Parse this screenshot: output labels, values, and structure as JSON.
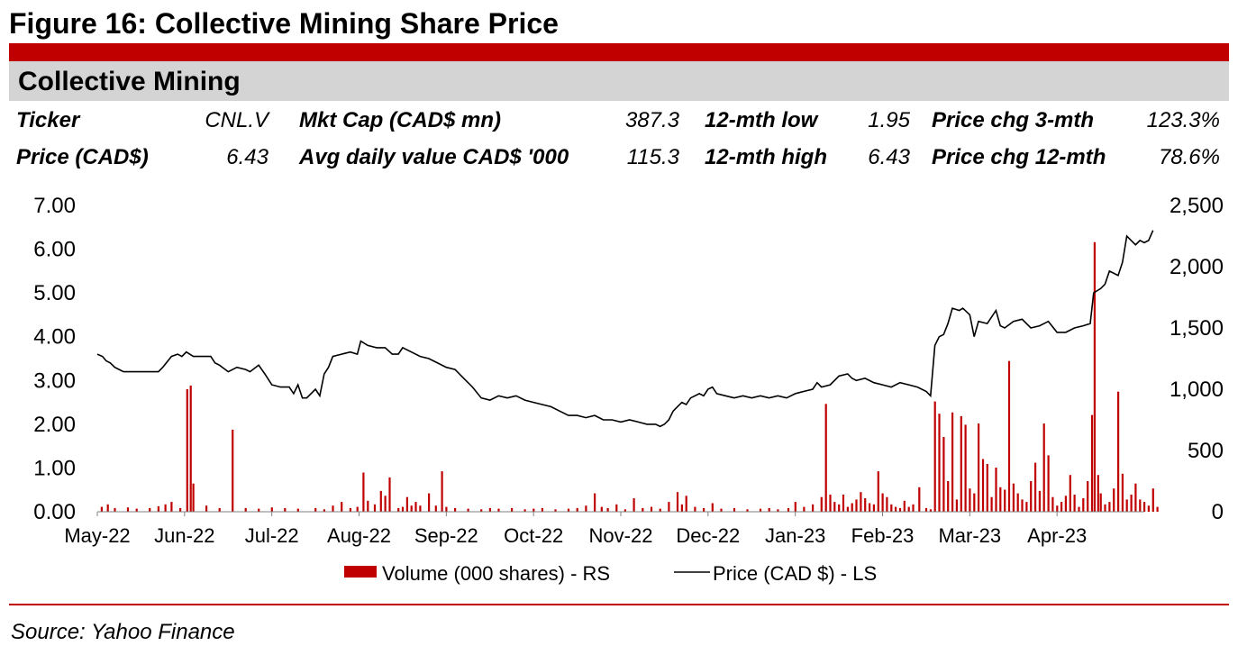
{
  "figure_title": "Figure 16: Collective Mining Share Price",
  "panel_title": "Collective Mining",
  "stats": {
    "row1": [
      {
        "label": "Ticker",
        "value": "CNL.V"
      },
      {
        "label": "Mkt Cap (CAD$ mn)",
        "value": "387.3"
      },
      {
        "label": "12-mth low",
        "value": "1.95"
      },
      {
        "label": "Price chg 3-mth",
        "value": "123.3%"
      }
    ],
    "row2": [
      {
        "label": "Price (CAD$)",
        "value": "6.43"
      },
      {
        "label": "Avg daily value CAD$ '000",
        "value": "115.3"
      },
      {
        "label": "12-mth high",
        "value": "6.43"
      },
      {
        "label": "Price chg 12-mth",
        "value": "78.6%"
      }
    ]
  },
  "source": "Source: Yahoo Finance",
  "colors": {
    "accent": "#c00000",
    "band": "#d4d4d4",
    "price_line": "#000000",
    "volume_bar": "#c00000"
  },
  "chart_data": {
    "type": "line+bar",
    "title": "",
    "x_tick_labels": [
      "May-22",
      "Jun-22",
      "Jul-22",
      "Aug-22",
      "Sep-22",
      "Oct-22",
      "Nov-22",
      "Dec-22",
      "Jan-23",
      "Feb-23",
      "Mar-23",
      "Apr-23"
    ],
    "left_axis": {
      "label": "Price (CAD $)",
      "range": [
        0,
        7
      ],
      "ticks": [
        "0.00",
        "1.00",
        "2.00",
        "3.00",
        "4.00",
        "5.00",
        "6.00",
        "7.00"
      ]
    },
    "right_axis": {
      "label": "Volume (000 shares)",
      "range": [
        0,
        2500
      ],
      "ticks": [
        "0",
        "500",
        "1,000",
        "1,500",
        "2,000",
        "2,500"
      ]
    },
    "legend": [
      {
        "name": "Volume (000 shares) - RS",
        "kind": "bar"
      },
      {
        "name": "Price (CAD $) - LS",
        "kind": "line"
      }
    ],
    "legend_position": "bottom-center",
    "price_series": {
      "name": "Price (CAD $) - LS",
      "points": [
        [
          0.0,
          3.6
        ],
        [
          0.06,
          3.55
        ],
        [
          0.1,
          3.45
        ],
        [
          0.15,
          3.4
        ],
        [
          0.2,
          3.3
        ],
        [
          0.25,
          3.25
        ],
        [
          0.3,
          3.2
        ],
        [
          0.5,
          3.2
        ],
        [
          0.7,
          3.2
        ],
        [
          0.75,
          3.3
        ],
        [
          0.85,
          3.55
        ],
        [
          0.92,
          3.6
        ],
        [
          0.97,
          3.55
        ],
        [
          1.02,
          3.65
        ],
        [
          1.1,
          3.55
        ],
        [
          1.3,
          3.55
        ],
        [
          1.35,
          3.4
        ],
        [
          1.4,
          3.35
        ],
        [
          1.5,
          3.2
        ],
        [
          1.6,
          3.3
        ],
        [
          1.7,
          3.25
        ],
        [
          1.75,
          3.2
        ],
        [
          1.85,
          3.35
        ],
        [
          1.92,
          3.15
        ],
        [
          2.0,
          2.9
        ],
        [
          2.1,
          2.85
        ],
        [
          2.2,
          2.85
        ],
        [
          2.25,
          2.7
        ],
        [
          2.3,
          2.9
        ],
        [
          2.35,
          2.6
        ],
        [
          2.4,
          2.6
        ],
        [
          2.5,
          2.8
        ],
        [
          2.55,
          2.65
        ],
        [
          2.6,
          3.15
        ],
        [
          2.65,
          3.3
        ],
        [
          2.7,
          3.55
        ],
        [
          2.8,
          3.6
        ],
        [
          2.9,
          3.65
        ],
        [
          2.98,
          3.6
        ],
        [
          3.02,
          3.9
        ],
        [
          3.1,
          3.8
        ],
        [
          3.2,
          3.75
        ],
        [
          3.3,
          3.75
        ],
        [
          3.38,
          3.6
        ],
        [
          3.45,
          3.6
        ],
        [
          3.5,
          3.75
        ],
        [
          3.6,
          3.65
        ],
        [
          3.7,
          3.55
        ],
        [
          3.8,
          3.5
        ],
        [
          3.9,
          3.4
        ],
        [
          4.0,
          3.3
        ],
        [
          4.1,
          3.25
        ],
        [
          4.2,
          3.05
        ],
        [
          4.3,
          2.85
        ],
        [
          4.4,
          2.6
        ],
        [
          4.5,
          2.55
        ],
        [
          4.6,
          2.65
        ],
        [
          4.7,
          2.6
        ],
        [
          4.8,
          2.65
        ],
        [
          4.9,
          2.55
        ],
        [
          5.0,
          2.5
        ],
        [
          5.1,
          2.45
        ],
        [
          5.2,
          2.4
        ],
        [
          5.3,
          2.3
        ],
        [
          5.4,
          2.2
        ],
        [
          5.5,
          2.2
        ],
        [
          5.6,
          2.15
        ],
        [
          5.7,
          2.2
        ],
        [
          5.8,
          2.1
        ],
        [
          5.9,
          2.1
        ],
        [
          6.0,
          2.05
        ],
        [
          6.1,
          2.1
        ],
        [
          6.2,
          2.05
        ],
        [
          6.3,
          2.0
        ],
        [
          6.4,
          2.0
        ],
        [
          6.45,
          1.95
        ],
        [
          6.5,
          2.0
        ],
        [
          6.55,
          2.1
        ],
        [
          6.6,
          2.3
        ],
        [
          6.65,
          2.4
        ],
        [
          6.7,
          2.5
        ],
        [
          6.75,
          2.45
        ],
        [
          6.8,
          2.6
        ],
        [
          6.9,
          2.7
        ],
        [
          6.95,
          2.65
        ],
        [
          7.0,
          2.8
        ],
        [
          7.05,
          2.85
        ],
        [
          7.1,
          2.7
        ],
        [
          7.2,
          2.65
        ],
        [
          7.3,
          2.6
        ],
        [
          7.4,
          2.65
        ],
        [
          7.5,
          2.6
        ],
        [
          7.6,
          2.65
        ],
        [
          7.7,
          2.6
        ],
        [
          7.8,
          2.65
        ],
        [
          7.9,
          2.6
        ],
        [
          8.0,
          2.7
        ],
        [
          8.1,
          2.75
        ],
        [
          8.2,
          2.8
        ],
        [
          8.25,
          2.95
        ],
        [
          8.3,
          2.85
        ],
        [
          8.4,
          2.9
        ],
        [
          8.5,
          3.1
        ],
        [
          8.6,
          3.15
        ],
        [
          8.65,
          3.05
        ],
        [
          8.7,
          3.0
        ],
        [
          8.8,
          3.05
        ],
        [
          8.9,
          2.95
        ],
        [
          9.0,
          2.9
        ],
        [
          9.1,
          2.85
        ],
        [
          9.2,
          2.95
        ],
        [
          9.3,
          2.9
        ],
        [
          9.4,
          2.85
        ],
        [
          9.5,
          2.75
        ],
        [
          9.55,
          2.65
        ],
        [
          9.6,
          3.8
        ],
        [
          9.65,
          4.0
        ],
        [
          9.7,
          4.05
        ],
        [
          9.75,
          4.3
        ],
        [
          9.8,
          4.65
        ],
        [
          9.88,
          4.6
        ],
        [
          9.92,
          4.65
        ],
        [
          10.0,
          4.5
        ],
        [
          10.05,
          4.0
        ],
        [
          10.1,
          4.35
        ],
        [
          10.2,
          4.3
        ],
        [
          10.3,
          4.6
        ],
        [
          10.35,
          4.25
        ],
        [
          10.4,
          4.2
        ],
        [
          10.5,
          4.35
        ],
        [
          10.6,
          4.4
        ],
        [
          10.7,
          4.2
        ],
        [
          10.8,
          4.25
        ],
        [
          10.9,
          4.35
        ],
        [
          11.0,
          4.1
        ],
        [
          11.1,
          4.1
        ],
        [
          11.2,
          4.2
        ],
        [
          11.3,
          4.25
        ],
        [
          11.38,
          4.3
        ],
        [
          11.42,
          5.0
        ],
        [
          11.5,
          5.1
        ],
        [
          11.55,
          5.2
        ],
        [
          11.6,
          5.5
        ],
        [
          11.7,
          5.4
        ],
        [
          11.75,
          5.7
        ],
        [
          11.8,
          6.3
        ],
        [
          11.85,
          6.2
        ],
        [
          11.9,
          6.1
        ],
        [
          11.95,
          6.2
        ],
        [
          12.0,
          6.15
        ],
        [
          12.05,
          6.2
        ],
        [
          12.1,
          6.43
        ]
      ]
    },
    "volume_series": {
      "name": "Volume (000 shares) - RS",
      "points": [
        [
          0.05,
          40
        ],
        [
          0.12,
          60
        ],
        [
          0.2,
          30
        ],
        [
          0.35,
          35
        ],
        [
          0.45,
          25
        ],
        [
          0.6,
          30
        ],
        [
          0.7,
          45
        ],
        [
          0.78,
          60
        ],
        [
          0.85,
          80
        ],
        [
          0.95,
          30
        ],
        [
          1.03,
          1000
        ],
        [
          1.07,
          1030
        ],
        [
          1.1,
          230
        ],
        [
          1.25,
          50
        ],
        [
          1.4,
          30
        ],
        [
          1.55,
          670
        ],
        [
          1.7,
          30
        ],
        [
          1.85,
          25
        ],
        [
          2.0,
          35
        ],
        [
          2.15,
          30
        ],
        [
          2.3,
          25
        ],
        [
          2.5,
          30
        ],
        [
          2.6,
          20
        ],
        [
          2.7,
          50
        ],
        [
          2.8,
          80
        ],
        [
          2.9,
          30
        ],
        [
          2.98,
          40
        ],
        [
          3.05,
          320
        ],
        [
          3.1,
          90
        ],
        [
          3.18,
          60
        ],
        [
          3.25,
          170
        ],
        [
          3.3,
          130
        ],
        [
          3.35,
          280
        ],
        [
          3.45,
          30
        ],
        [
          3.5,
          40
        ],
        [
          3.55,
          120
        ],
        [
          3.6,
          50
        ],
        [
          3.65,
          80
        ],
        [
          3.7,
          50
        ],
        [
          3.8,
          150
        ],
        [
          3.88,
          50
        ],
        [
          3.95,
          330
        ],
        [
          4.0,
          40
        ],
        [
          4.1,
          30
        ],
        [
          4.25,
          25
        ],
        [
          4.4,
          20
        ],
        [
          4.5,
          30
        ],
        [
          4.6,
          25
        ],
        [
          4.75,
          30
        ],
        [
          4.9,
          20
        ],
        [
          5.0,
          25
        ],
        [
          5.1,
          30
        ],
        [
          5.25,
          20
        ],
        [
          5.4,
          25
        ],
        [
          5.5,
          30
        ],
        [
          5.6,
          50
        ],
        [
          5.7,
          150
        ],
        [
          5.78,
          40
        ],
        [
          5.85,
          30
        ],
        [
          5.95,
          60
        ],
        [
          6.05,
          20
        ],
        [
          6.15,
          110
        ],
        [
          6.25,
          30
        ],
        [
          6.35,
          40
        ],
        [
          6.45,
          25
        ],
        [
          6.55,
          80
        ],
        [
          6.65,
          160
        ],
        [
          6.7,
          60
        ],
        [
          6.75,
          130
        ],
        [
          6.85,
          40
        ],
        [
          6.95,
          30
        ],
        [
          7.05,
          70
        ],
        [
          7.15,
          25
        ],
        [
          7.3,
          30
        ],
        [
          7.45,
          20
        ],
        [
          7.6,
          25
        ],
        [
          7.7,
          30
        ],
        [
          7.8,
          20
        ],
        [
          7.92,
          30
        ],
        [
          8.0,
          80
        ],
        [
          8.1,
          40
        ],
        [
          8.2,
          60
        ],
        [
          8.3,
          120
        ],
        [
          8.35,
          880
        ],
        [
          8.4,
          140
        ],
        [
          8.45,
          80
        ],
        [
          8.5,
          60
        ],
        [
          8.55,
          140
        ],
        [
          8.6,
          40
        ],
        [
          8.65,
          70
        ],
        [
          8.7,
          100
        ],
        [
          8.75,
          160
        ],
        [
          8.8,
          110
        ],
        [
          8.85,
          70
        ],
        [
          8.9,
          60
        ],
        [
          8.95,
          330
        ],
        [
          9.0,
          150
        ],
        [
          9.05,
          120
        ],
        [
          9.1,
          60
        ],
        [
          9.15,
          40
        ],
        [
          9.2,
          30
        ],
        [
          9.25,
          90
        ],
        [
          9.3,
          40
        ],
        [
          9.35,
          60
        ],
        [
          9.42,
          200
        ],
        [
          9.5,
          30
        ],
        [
          9.55,
          20
        ],
        [
          9.6,
          900
        ],
        [
          9.65,
          800
        ],
        [
          9.7,
          610
        ],
        [
          9.75,
          250
        ],
        [
          9.8,
          810
        ],
        [
          9.85,
          100
        ],
        [
          9.9,
          780
        ],
        [
          9.95,
          710
        ],
        [
          10.0,
          190
        ],
        [
          10.05,
          150
        ],
        [
          10.1,
          720
        ],
        [
          10.15,
          430
        ],
        [
          10.2,
          390
        ],
        [
          10.25,
          120
        ],
        [
          10.3,
          360
        ],
        [
          10.35,
          200
        ],
        [
          10.4,
          180
        ],
        [
          10.45,
          1230
        ],
        [
          10.5,
          230
        ],
        [
          10.55,
          150
        ],
        [
          10.6,
          100
        ],
        [
          10.65,
          80
        ],
        [
          10.7,
          250
        ],
        [
          10.75,
          400
        ],
        [
          10.8,
          170
        ],
        [
          10.85,
          720
        ],
        [
          10.9,
          460
        ],
        [
          10.95,
          120
        ],
        [
          11.0,
          50
        ],
        [
          11.05,
          80
        ],
        [
          11.1,
          130
        ],
        [
          11.15,
          300
        ],
        [
          11.2,
          140
        ],
        [
          11.25,
          40
        ],
        [
          11.3,
          110
        ],
        [
          11.35,
          250
        ],
        [
          11.4,
          790
        ],
        [
          11.43,
          2200
        ],
        [
          11.47,
          300
        ],
        [
          11.5,
          150
        ],
        [
          11.55,
          60
        ],
        [
          11.6,
          80
        ],
        [
          11.65,
          190
        ],
        [
          11.7,
          980
        ],
        [
          11.75,
          310
        ],
        [
          11.8,
          100
        ],
        [
          11.85,
          140
        ],
        [
          11.9,
          230
        ],
        [
          11.95,
          100
        ],
        [
          12.0,
          80
        ],
        [
          12.05,
          50
        ],
        [
          12.1,
          190
        ],
        [
          12.15,
          40
        ]
      ]
    }
  }
}
